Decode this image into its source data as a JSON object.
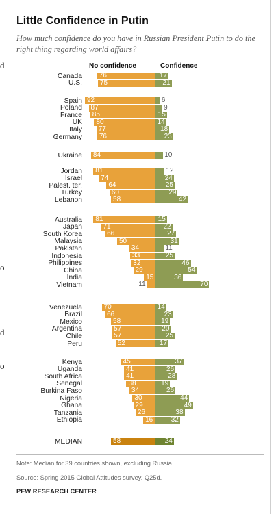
{
  "header": {
    "title": "Little Confidence in Putin",
    "subtitle": "How much confidence do you have in Russian President Putin to do the right thing regarding world affairs?"
  },
  "column_headers": {
    "no_confidence": "No confidence",
    "confidence": "Confidence"
  },
  "edge_fragments": [
    "d",
    "o",
    "d",
    "o"
  ],
  "chart_data": {
    "type": "bar",
    "orientation": "diverging-horizontal",
    "title": "Little Confidence in Putin",
    "series": [
      {
        "name": "No confidence",
        "color": "#e8a23a"
      },
      {
        "name": "Confidence",
        "color": "#8e9c54"
      }
    ],
    "groups": [
      {
        "rows": [
          {
            "country": "Canada",
            "no_confidence": 76,
            "confidence": 17
          },
          {
            "country": "U.S.",
            "no_confidence": 75,
            "confidence": 21
          }
        ]
      },
      {
        "rows": [
          {
            "country": "Spain",
            "no_confidence": 92,
            "confidence": 6
          },
          {
            "country": "Poland",
            "no_confidence": 87,
            "confidence": 9
          },
          {
            "country": "France",
            "no_confidence": 85,
            "confidence": 15
          },
          {
            "country": "UK",
            "no_confidence": 80,
            "confidence": 14
          },
          {
            "country": "Italy",
            "no_confidence": 77,
            "confidence": 18
          },
          {
            "country": "Germany",
            "no_confidence": 76,
            "confidence": 23
          }
        ]
      },
      {
        "rows": [
          {
            "country": "Ukraine",
            "no_confidence": 84,
            "confidence": 10
          }
        ]
      },
      {
        "rows": [
          {
            "country": "Jordan",
            "no_confidence": 81,
            "confidence": 12
          },
          {
            "country": "Israel",
            "no_confidence": 74,
            "confidence": 24
          },
          {
            "country": "Palest. ter.",
            "no_confidence": 64,
            "confidence": 25
          },
          {
            "country": "Turkey",
            "no_confidence": 60,
            "confidence": 29
          },
          {
            "country": "Lebanon",
            "no_confidence": 58,
            "confidence": 42
          }
        ]
      },
      {
        "rows": [
          {
            "country": "Australia",
            "no_confidence": 81,
            "confidence": 15
          },
          {
            "country": "Japan",
            "no_confidence": 71,
            "confidence": 22
          },
          {
            "country": "South Korea",
            "no_confidence": 66,
            "confidence": 27
          },
          {
            "country": "Malaysia",
            "no_confidence": 50,
            "confidence": 31
          },
          {
            "country": "Pakistan",
            "no_confidence": 34,
            "confidence": 11
          },
          {
            "country": "Indonesia",
            "no_confidence": 33,
            "confidence": 25
          },
          {
            "country": "Philippines",
            "no_confidence": 32,
            "confidence": 46
          },
          {
            "country": "China",
            "no_confidence": 29,
            "confidence": 54
          },
          {
            "country": "India",
            "no_confidence": 15,
            "confidence": 36
          },
          {
            "country": "Vietnam",
            "no_confidence": 11,
            "confidence": 70
          }
        ]
      },
      {
        "rows": [
          {
            "country": "Venezuela",
            "no_confidence": 70,
            "confidence": 14
          },
          {
            "country": "Brazil",
            "no_confidence": 66,
            "confidence": 23
          },
          {
            "country": "Mexico",
            "no_confidence": 58,
            "confidence": 19
          },
          {
            "country": "Argentina",
            "no_confidence": 57,
            "confidence": 20
          },
          {
            "country": "Chile",
            "no_confidence": 57,
            "confidence": 25
          },
          {
            "country": "Peru",
            "no_confidence": 52,
            "confidence": 17
          }
        ]
      },
      {
        "rows": [
          {
            "country": "Kenya",
            "no_confidence": 45,
            "confidence": 37
          },
          {
            "country": "Uganda",
            "no_confidence": 41,
            "confidence": 26
          },
          {
            "country": "South Africa",
            "no_confidence": 41,
            "confidence": 28
          },
          {
            "country": "Senegal",
            "no_confidence": 38,
            "confidence": 19
          },
          {
            "country": "Burkina Faso",
            "no_confidence": 34,
            "confidence": 26
          },
          {
            "country": "Nigeria",
            "no_confidence": 30,
            "confidence": 44
          },
          {
            "country": "Ghana",
            "no_confidence": 29,
            "confidence": 49
          },
          {
            "country": "Tanzania",
            "no_confidence": 26,
            "confidence": 38
          },
          {
            "country": "Ethiopia",
            "no_confidence": 16,
            "confidence": 32
          }
        ]
      }
    ],
    "median": {
      "country": "MEDIAN",
      "no_confidence": 58,
      "confidence": 24
    }
  },
  "footer": {
    "note": "Note: Median for 39 countries shown, excluding Russia.",
    "source": "Source: Spring 2015 Global Attitudes survey. Q25d.",
    "brand": "PEW RESEARCH CENTER"
  }
}
